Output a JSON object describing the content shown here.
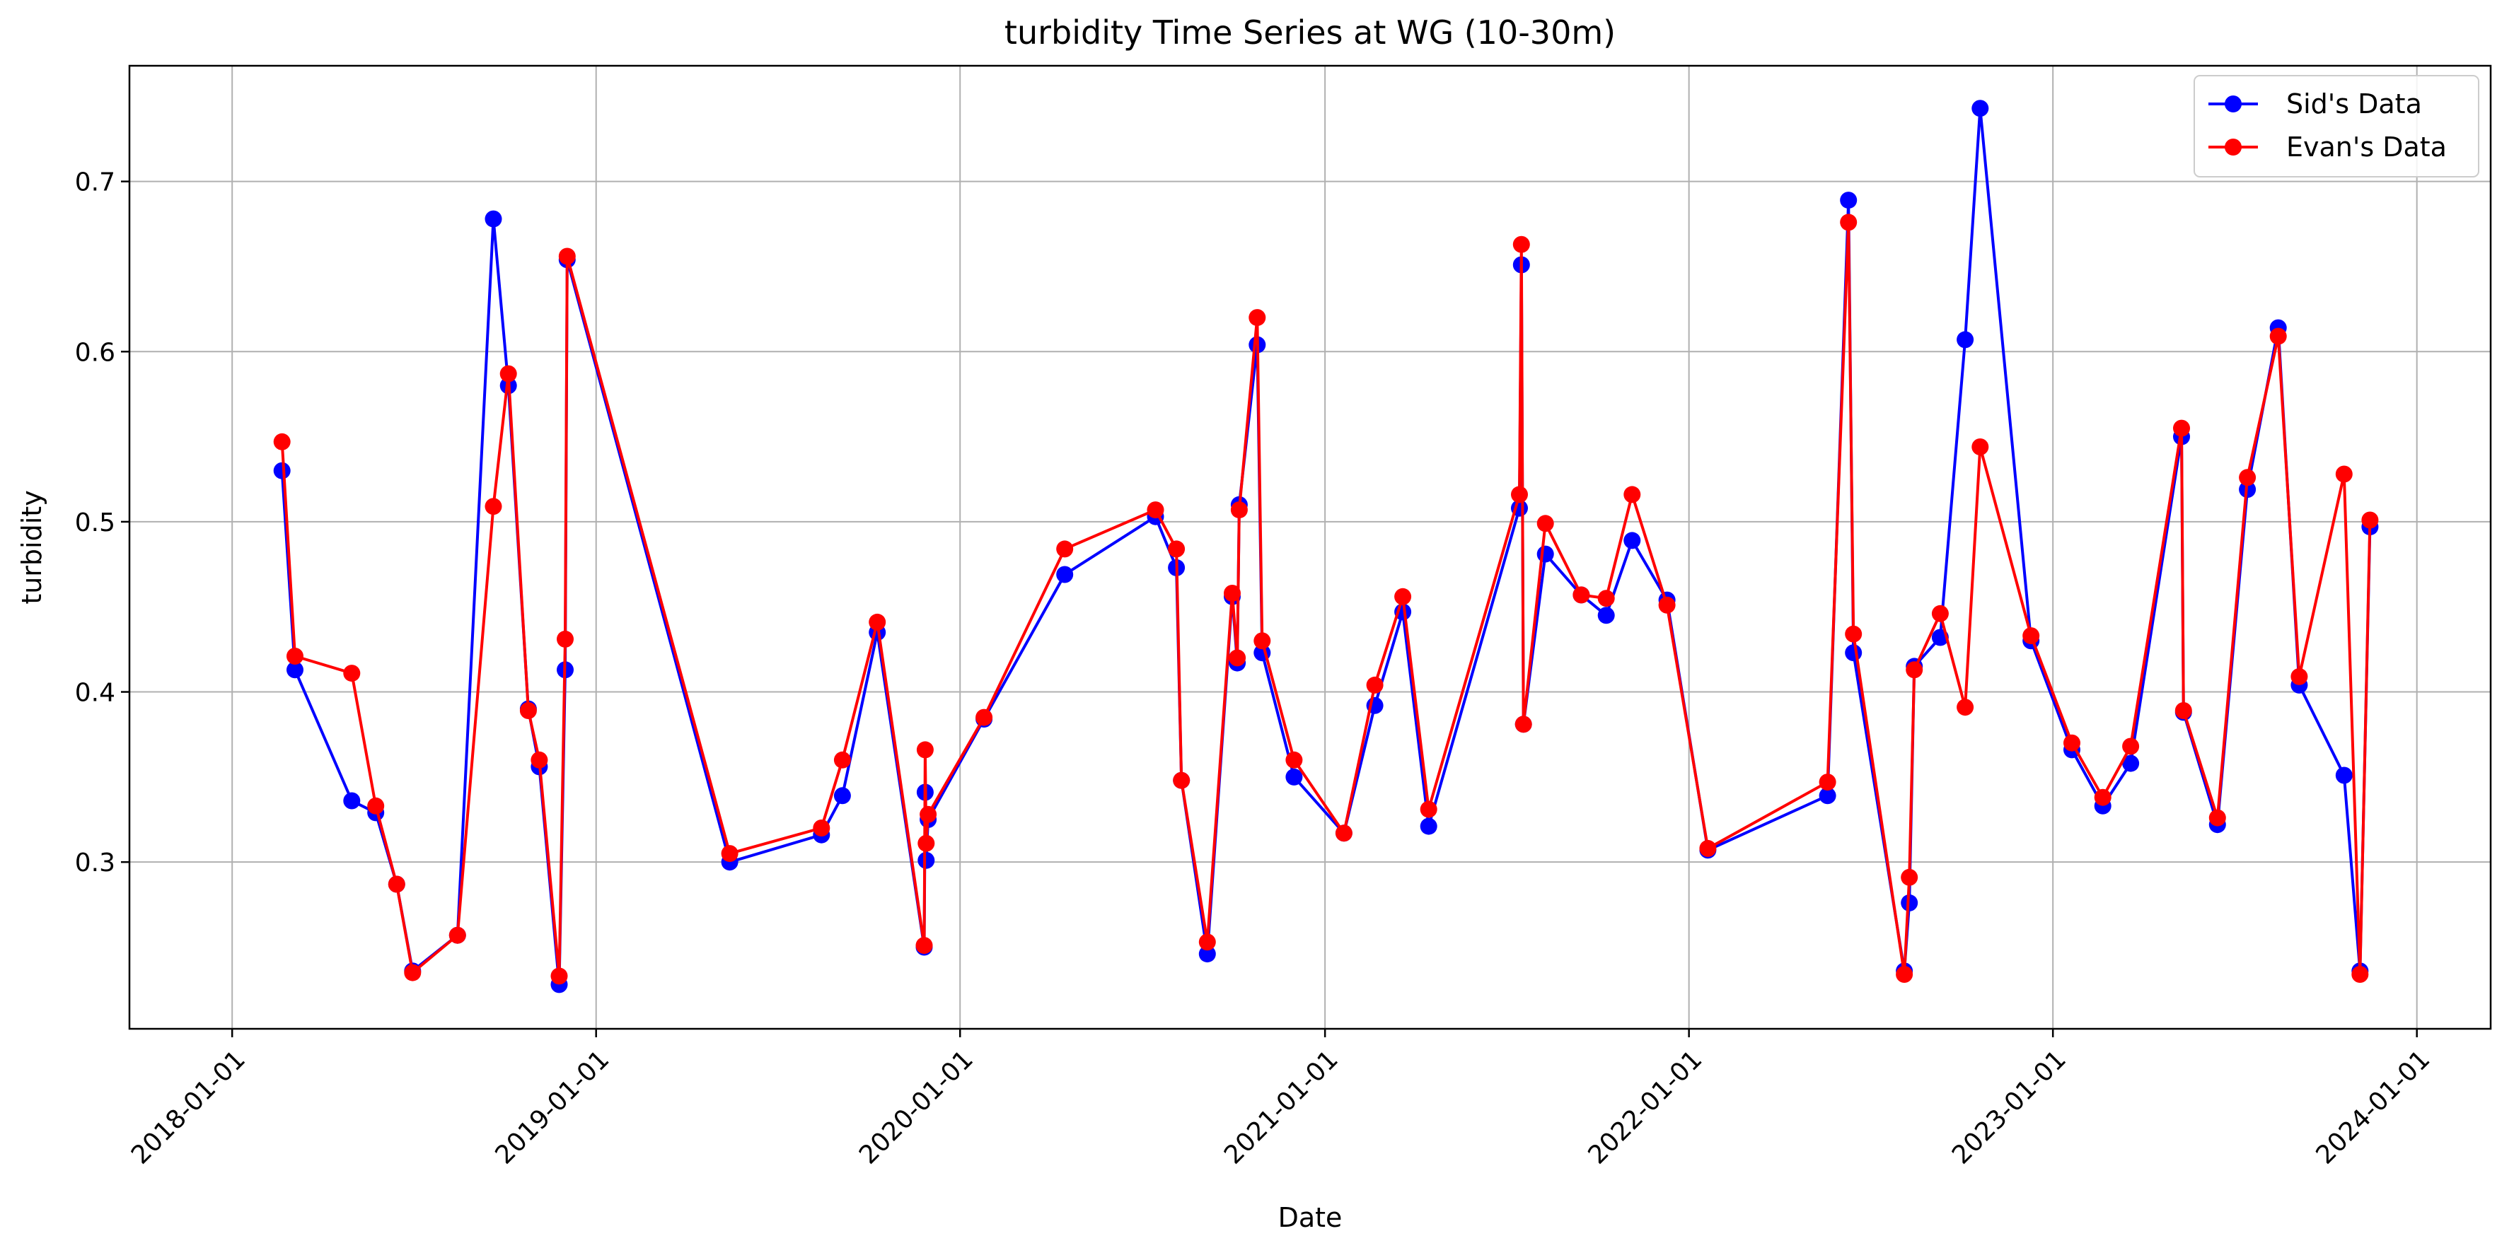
{
  "chart_data": {
    "type": "line",
    "title": "turbidity Time Series at WG (10-30m)",
    "xlabel": "Date",
    "ylabel": "turbidity",
    "xlim": [
      "2017-09-20",
      "2024-03-15"
    ],
    "ylim": [
      0.202,
      0.768
    ],
    "xticks": [
      "2018-01-01",
      "2019-01-01",
      "2020-01-01",
      "2021-01-01",
      "2022-01-01",
      "2023-01-01",
      "2024-01-01"
    ],
    "xtick_labels": [
      "2018-01-01",
      "2019-01-01",
      "2020-01-01",
      "2021-01-01",
      "2022-01-01",
      "2023-01-01",
      "2024-01-01"
    ],
    "yticks": [
      0.3,
      0.4,
      0.5,
      0.6,
      0.7
    ],
    "ytick_labels": [
      "0.3",
      "0.4",
      "0.5",
      "0.6",
      "0.7"
    ],
    "grid": true,
    "legend_position": "top-right",
    "series": [
      {
        "name": "Sid's Data",
        "color": "#0000ff",
        "points": [
          [
            "2018-02-20",
            0.53
          ],
          [
            "2018-03-05",
            0.413
          ],
          [
            "2018-05-01",
            0.336
          ],
          [
            "2018-05-25",
            0.329
          ],
          [
            "2018-06-15",
            0.287
          ],
          [
            "2018-07-01",
            0.236
          ],
          [
            "2018-08-15",
            0.257
          ],
          [
            "2018-09-20",
            0.678
          ],
          [
            "2018-10-05",
            0.58
          ],
          [
            "2018-10-25",
            0.39
          ],
          [
            "2018-11-05",
            0.356
          ],
          [
            "2018-11-25",
            0.228
          ],
          [
            "2018-12-01",
            0.413
          ],
          [
            "2018-12-03",
            0.654
          ],
          [
            "2019-05-15",
            0.3
          ],
          [
            "2019-08-15",
            0.316
          ],
          [
            "2019-09-05",
            0.339
          ],
          [
            "2019-10-10",
            0.435
          ],
          [
            "2019-11-26",
            0.25
          ],
          [
            "2019-11-27",
            0.341
          ],
          [
            "2019-11-28",
            0.301
          ],
          [
            "2019-11-30",
            0.325
          ],
          [
            "2020-01-25",
            0.384
          ],
          [
            "2020-04-15",
            0.469
          ],
          [
            "2020-07-15",
            0.503
          ],
          [
            "2020-08-05",
            0.473
          ],
          [
            "2020-08-10",
            0.348
          ],
          [
            "2020-09-05",
            0.246
          ],
          [
            "2020-09-30",
            0.456
          ],
          [
            "2020-10-05",
            0.417
          ],
          [
            "2020-10-07",
            0.51
          ],
          [
            "2020-10-25",
            0.604
          ],
          [
            "2020-10-30",
            0.423
          ],
          [
            "2020-12-01",
            0.35
          ],
          [
            "2021-01-20",
            0.317
          ],
          [
            "2021-02-20",
            0.392
          ],
          [
            "2021-03-20",
            0.447
          ],
          [
            "2021-04-15",
            0.321
          ],
          [
            "2021-07-15",
            0.508
          ],
          [
            "2021-07-17",
            0.651
          ],
          [
            "2021-07-19",
            0.381
          ],
          [
            "2021-08-10",
            0.481
          ],
          [
            "2021-09-15",
            0.457
          ],
          [
            "2021-10-10",
            0.445
          ],
          [
            "2021-11-05",
            0.489
          ],
          [
            "2021-12-10",
            0.454
          ],
          [
            "2022-01-20",
            0.307
          ],
          [
            "2022-05-20",
            0.339
          ],
          [
            "2022-06-10",
            0.689
          ],
          [
            "2022-06-15",
            0.423
          ],
          [
            "2022-08-05",
            0.236
          ],
          [
            "2022-08-10",
            0.276
          ],
          [
            "2022-08-15",
            0.415
          ],
          [
            "2022-09-10",
            0.432
          ],
          [
            "2022-10-05",
            0.607
          ],
          [
            "2022-10-20",
            0.743
          ],
          [
            "2022-12-10",
            0.43
          ],
          [
            "2023-01-20",
            0.366
          ],
          [
            "2023-02-20",
            0.333
          ],
          [
            "2023-03-20",
            0.358
          ],
          [
            "2023-05-10",
            0.55
          ],
          [
            "2023-05-12",
            0.388
          ],
          [
            "2023-06-15",
            0.322
          ],
          [
            "2023-07-15",
            0.519
          ],
          [
            "2023-08-15",
            0.614
          ],
          [
            "2023-09-05",
            0.404
          ],
          [
            "2023-10-20",
            0.351
          ],
          [
            "2023-11-05",
            0.236
          ],
          [
            "2023-11-15",
            0.497
          ]
        ]
      },
      {
        "name": "Evan's Data",
        "color": "#ff0000",
        "points": [
          [
            "2018-02-20",
            0.547
          ],
          [
            "2018-03-05",
            0.421
          ],
          [
            "2018-05-01",
            0.411
          ],
          [
            "2018-05-25",
            0.333
          ],
          [
            "2018-06-15",
            0.287
          ],
          [
            "2018-07-01",
            0.235
          ],
          [
            "2018-08-15",
            0.257
          ],
          [
            "2018-09-20",
            0.509
          ],
          [
            "2018-10-05",
            0.587
          ],
          [
            "2018-10-25",
            0.389
          ],
          [
            "2018-11-05",
            0.36
          ],
          [
            "2018-11-25",
            0.233
          ],
          [
            "2018-12-01",
            0.431
          ],
          [
            "2018-12-03",
            0.656
          ],
          [
            "2019-05-15",
            0.305
          ],
          [
            "2019-08-15",
            0.32
          ],
          [
            "2019-09-05",
            0.36
          ],
          [
            "2019-10-10",
            0.441
          ],
          [
            "2019-11-26",
            0.251
          ],
          [
            "2019-11-27",
            0.366
          ],
          [
            "2019-11-28",
            0.311
          ],
          [
            "2019-11-30",
            0.328
          ],
          [
            "2020-01-25",
            0.385
          ],
          [
            "2020-04-15",
            0.484
          ],
          [
            "2020-07-15",
            0.507
          ],
          [
            "2020-08-05",
            0.484
          ],
          [
            "2020-08-10",
            0.348
          ],
          [
            "2020-09-05",
            0.253
          ],
          [
            "2020-09-30",
            0.458
          ],
          [
            "2020-10-05",
            0.42
          ],
          [
            "2020-10-07",
            0.507
          ],
          [
            "2020-10-25",
            0.62
          ],
          [
            "2020-10-30",
            0.43
          ],
          [
            "2020-12-01",
            0.36
          ],
          [
            "2021-01-20",
            0.317
          ],
          [
            "2021-02-20",
            0.404
          ],
          [
            "2021-03-20",
            0.456
          ],
          [
            "2021-04-15",
            0.331
          ],
          [
            "2021-07-15",
            0.516
          ],
          [
            "2021-07-17",
            0.663
          ],
          [
            "2021-07-19",
            0.381
          ],
          [
            "2021-08-10",
            0.499
          ],
          [
            "2021-09-15",
            0.457
          ],
          [
            "2021-10-10",
            0.455
          ],
          [
            "2021-11-05",
            0.516
          ],
          [
            "2021-12-10",
            0.451
          ],
          [
            "2022-01-20",
            0.308
          ],
          [
            "2022-05-20",
            0.347
          ],
          [
            "2022-06-10",
            0.676
          ],
          [
            "2022-06-15",
            0.434
          ],
          [
            "2022-08-05",
            0.234
          ],
          [
            "2022-08-10",
            0.291
          ],
          [
            "2022-08-15",
            0.413
          ],
          [
            "2022-09-10",
            0.446
          ],
          [
            "2022-10-05",
            0.391
          ],
          [
            "2022-10-20",
            0.544
          ],
          [
            "2022-12-10",
            0.433
          ],
          [
            "2023-01-20",
            0.37
          ],
          [
            "2023-02-20",
            0.338
          ],
          [
            "2023-03-20",
            0.368
          ],
          [
            "2023-05-10",
            0.555
          ],
          [
            "2023-05-12",
            0.389
          ],
          [
            "2023-06-15",
            0.326
          ],
          [
            "2023-07-15",
            0.526
          ],
          [
            "2023-08-15",
            0.609
          ],
          [
            "2023-09-05",
            0.409
          ],
          [
            "2023-10-20",
            0.528
          ],
          [
            "2023-11-05",
            0.234
          ],
          [
            "2023-11-15",
            0.501
          ]
        ]
      }
    ]
  }
}
